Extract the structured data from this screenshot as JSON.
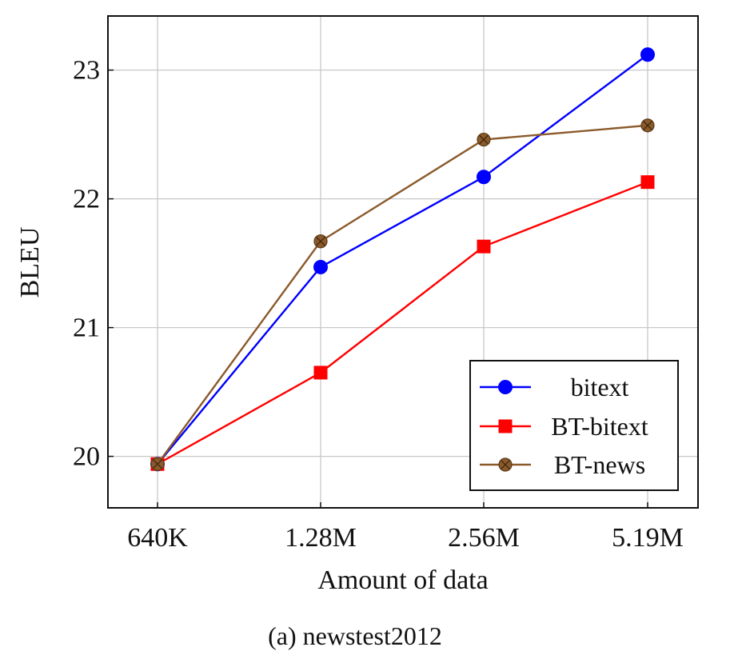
{
  "chart_data": {
    "type": "line",
    "caption": "(a) newstest2012",
    "xlabel": "Amount of data",
    "ylabel": "BLEU",
    "categories": [
      "640K",
      "1.28M",
      "2.56M",
      "5.19M"
    ],
    "yticks": [
      20,
      21,
      22,
      23
    ],
    "ylim": [
      19.6,
      23.42
    ],
    "grid": true,
    "legend_position": "bottom-right",
    "series": [
      {
        "name": "bitext",
        "color": "#0000ff",
        "marker": "circle",
        "values": [
          19.94,
          21.47,
          22.17,
          23.12
        ]
      },
      {
        "name": "BT-bitext",
        "color": "#ff0000",
        "marker": "square",
        "values": [
          19.94,
          20.65,
          21.63,
          22.13
        ]
      },
      {
        "name": "BT-news",
        "color": "#8b5a2b",
        "marker": "circle-x",
        "values": [
          19.94,
          21.67,
          22.46,
          22.57
        ]
      }
    ]
  }
}
